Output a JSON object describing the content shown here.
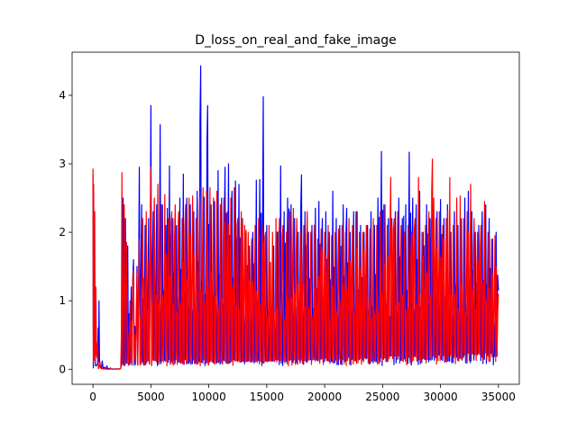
{
  "chart_data": {
    "type": "line",
    "title": "D_loss_on_real_and_fake_image",
    "xlabel": "",
    "ylabel": "",
    "xlim": [
      -1800,
      36800
    ],
    "ylim": [
      -0.22,
      4.63
    ],
    "xticks": [
      0,
      5000,
      10000,
      15000,
      20000,
      25000,
      30000,
      35000
    ],
    "yticks": [
      0,
      1,
      2,
      3,
      4
    ],
    "grid": false,
    "legend": "none",
    "series": [
      {
        "color": "#0000ff",
        "points": [
          [
            0,
            2.85
          ],
          [
            60,
            2.4
          ],
          [
            150,
            0.3
          ],
          [
            300,
            0.05
          ],
          [
            450,
            0.6
          ],
          [
            520,
            1.0
          ],
          [
            600,
            0.05
          ],
          [
            800,
            0.12
          ],
          [
            1000,
            0.03
          ],
          [
            1200,
            0.05
          ],
          [
            1500,
            0.02
          ],
          [
            2000,
            0.01
          ],
          [
            2400,
            0.02
          ],
          [
            2600,
            2.5
          ],
          [
            2800,
            2.2
          ],
          [
            3000,
            1.8
          ],
          [
            3300,
            1.2
          ],
          [
            3500,
            1.6
          ],
          [
            3800,
            1.5
          ],
          [
            4000,
            2.95
          ],
          [
            4200,
            2.4
          ],
          [
            4500,
            2.1
          ],
          [
            4800,
            2.2
          ],
          [
            5000,
            3.85
          ],
          [
            5200,
            2.3
          ],
          [
            5500,
            2.4
          ],
          [
            5800,
            3.57
          ],
          [
            6000,
            2.4
          ],
          [
            6300,
            2.1
          ],
          [
            6600,
            2.97
          ],
          [
            6900,
            2.2
          ],
          [
            7200,
            2.1
          ],
          [
            7500,
            2.5
          ],
          [
            7800,
            2.85
          ],
          [
            8100,
            2.5
          ],
          [
            8400,
            2.4
          ],
          [
            8700,
            2.3
          ],
          [
            9000,
            2.6
          ],
          [
            9300,
            4.43
          ],
          [
            9600,
            2.5
          ],
          [
            9900,
            3.85
          ],
          [
            10200,
            2.4
          ],
          [
            10500,
            2.45
          ],
          [
            10800,
            2.9
          ],
          [
            11100,
            2.5
          ],
          [
            11400,
            2.95
          ],
          [
            11700,
            3.0
          ],
          [
            12000,
            2.6
          ],
          [
            12300,
            2.75
          ],
          [
            12600,
            2.7
          ],
          [
            12900,
            2.2
          ],
          [
            13200,
            2.0
          ],
          [
            13500,
            1.8
          ],
          [
            13800,
            2.0
          ],
          [
            14100,
            2.76
          ],
          [
            14400,
            2.77
          ],
          [
            14700,
            3.98
          ],
          [
            15000,
            2.1
          ],
          [
            15300,
            1.5
          ],
          [
            15600,
            1.8
          ],
          [
            15900,
            2.0
          ],
          [
            16200,
            2.97
          ],
          [
            16500,
            2.3
          ],
          [
            16800,
            2.5
          ],
          [
            17100,
            2.4
          ],
          [
            17400,
            2.2
          ],
          [
            17700,
            2.0
          ],
          [
            18000,
            2.84
          ],
          [
            18300,
            2.3
          ],
          [
            18600,
            2.0
          ],
          [
            18900,
            2.1
          ],
          [
            19200,
            2.35
          ],
          [
            19500,
            2.45
          ],
          [
            19800,
            2.2
          ],
          [
            20100,
            2.3
          ],
          [
            20400,
            2.0
          ],
          [
            20700,
            2.6
          ],
          [
            21000,
            2.2
          ],
          [
            21300,
            2.1
          ],
          [
            21600,
            2.4
          ],
          [
            21900,
            2.35
          ],
          [
            22200,
            2.0
          ],
          [
            22500,
            2.3
          ],
          [
            22800,
            2.3
          ],
          [
            23100,
            2.1
          ],
          [
            23400,
            2.0
          ],
          [
            23700,
            2.1
          ],
          [
            24000,
            2.3
          ],
          [
            24300,
            2.1
          ],
          [
            24600,
            2.5
          ],
          [
            24900,
            3.18
          ],
          [
            25200,
            2.4
          ],
          [
            25500,
            2.2
          ],
          [
            25800,
            2.2
          ],
          [
            26100,
            2.3
          ],
          [
            26400,
            2.5
          ],
          [
            26700,
            2.2
          ],
          [
            27000,
            2.4
          ],
          [
            27300,
            3.17
          ],
          [
            27600,
            2.5
          ],
          [
            27900,
            2.4
          ],
          [
            28200,
            2.6
          ],
          [
            28500,
            2.0
          ],
          [
            28800,
            2.4
          ],
          [
            29100,
            2.2
          ],
          [
            29400,
            2.4
          ],
          [
            29700,
            2.3
          ],
          [
            30000,
            2.48
          ],
          [
            30300,
            2.2
          ],
          [
            30600,
            2.4
          ],
          [
            30900,
            2.0
          ],
          [
            31200,
            2.3
          ],
          [
            31500,
            2.1
          ],
          [
            31800,
            2.2
          ],
          [
            32100,
            2.5
          ],
          [
            32400,
            2.6
          ],
          [
            32700,
            2.3
          ],
          [
            33000,
            2.0
          ],
          [
            33300,
            2.1
          ],
          [
            33600,
            2.3
          ],
          [
            33900,
            2.4
          ],
          [
            34200,
            2.2
          ],
          [
            34500,
            1.9
          ],
          [
            34800,
            2.0
          ],
          [
            35000,
            1.15
          ]
        ]
      },
      {
        "color": "#ff0000",
        "points": [
          [
            0,
            2.93
          ],
          [
            60,
            2.7
          ],
          [
            150,
            2.3
          ],
          [
            250,
            1.2
          ],
          [
            400,
            0.4
          ],
          [
            600,
            0.1
          ],
          [
            800,
            0.02
          ],
          [
            1000,
            0.01
          ],
          [
            1500,
            0.01
          ],
          [
            2000,
            0.01
          ],
          [
            2400,
            0.02
          ],
          [
            2500,
            2.87
          ],
          [
            2700,
            2.4
          ],
          [
            2900,
            1.85
          ],
          [
            3200,
            1.0
          ],
          [
            3500,
            1.45
          ],
          [
            3800,
            1.4
          ],
          [
            4000,
            1.9
          ],
          [
            4300,
            2.2
          ],
          [
            4600,
            2.3
          ],
          [
            5000,
            2.95
          ],
          [
            5300,
            2.5
          ],
          [
            5600,
            2.7
          ],
          [
            5900,
            2.4
          ],
          [
            6200,
            2.55
          ],
          [
            6500,
            2.2
          ],
          [
            6800,
            2.3
          ],
          [
            7100,
            2.4
          ],
          [
            7400,
            2.3
          ],
          [
            7700,
            2.2
          ],
          [
            8000,
            2.4
          ],
          [
            8300,
            2.5
          ],
          [
            8600,
            2.53
          ],
          [
            8900,
            2.2
          ],
          [
            9200,
            2.5
          ],
          [
            9500,
            2.65
          ],
          [
            9800,
            2.6
          ],
          [
            10100,
            2.65
          ],
          [
            10400,
            2.5
          ],
          [
            10700,
            2.6
          ],
          [
            11000,
            2.4
          ],
          [
            11300,
            2.5
          ],
          [
            11600,
            2.3
          ],
          [
            11900,
            2.5
          ],
          [
            12200,
            2.65
          ],
          [
            12500,
            2.2
          ],
          [
            12800,
            2.3
          ],
          [
            13100,
            2.1
          ],
          [
            13400,
            2.0
          ],
          [
            13700,
            1.9
          ],
          [
            14000,
            2.1
          ],
          [
            14300,
            2.2
          ],
          [
            14600,
            2.1
          ],
          [
            14900,
            2.0
          ],
          [
            15200,
            2.1
          ],
          [
            15500,
            2.0
          ],
          [
            15800,
            2.2
          ],
          [
            16100,
            2.2
          ],
          [
            16400,
            2.1
          ],
          [
            16700,
            2.0
          ],
          [
            17000,
            2.3
          ],
          [
            17300,
            2.35
          ],
          [
            17600,
            2.2
          ],
          [
            17900,
            2.0
          ],
          [
            18200,
            2.1
          ],
          [
            18500,
            2.3
          ],
          [
            18800,
            2.0
          ],
          [
            19100,
            2.1
          ],
          [
            19400,
            1.9
          ],
          [
            19700,
            2.05
          ],
          [
            20000,
            2.0
          ],
          [
            20300,
            2.1
          ],
          [
            20600,
            1.95
          ],
          [
            20900,
            2.0
          ],
          [
            21200,
            2.05
          ],
          [
            21500,
            2.1
          ],
          [
            21800,
            2.0
          ],
          [
            22100,
            2.2
          ],
          [
            22400,
            2.1
          ],
          [
            22700,
            2.3
          ],
          [
            23000,
            2.0
          ],
          [
            23300,
            2.0
          ],
          [
            23600,
            2.1
          ],
          [
            23900,
            2.05
          ],
          [
            24200,
            2.2
          ],
          [
            24500,
            2.1
          ],
          [
            24800,
            2.3
          ],
          [
            25100,
            2.4
          ],
          [
            25400,
            2.1
          ],
          [
            25700,
            2.8
          ],
          [
            26000,
            2.2
          ],
          [
            26300,
            2.3
          ],
          [
            26600,
            2.1
          ],
          [
            26900,
            2.0
          ],
          [
            27200,
            2.1
          ],
          [
            27500,
            2.0
          ],
          [
            27800,
            2.2
          ],
          [
            28100,
            2.8
          ],
          [
            28400,
            2.0
          ],
          [
            28700,
            2.1
          ],
          [
            29000,
            2.3
          ],
          [
            29300,
            3.07
          ],
          [
            29600,
            2.2
          ],
          [
            29900,
            2.3
          ],
          [
            30200,
            2.1
          ],
          [
            30500,
            2.2
          ],
          [
            30800,
            2.8
          ],
          [
            31100,
            2.1
          ],
          [
            31400,
            2.5
          ],
          [
            31700,
            2.53
          ],
          [
            32000,
            2.2
          ],
          [
            32300,
            2.3
          ],
          [
            32600,
            2.7
          ],
          [
            32900,
            2.2
          ],
          [
            33200,
            2.0
          ],
          [
            33500,
            2.1
          ],
          [
            33800,
            2.45
          ],
          [
            34100,
            2.0
          ],
          [
            34400,
            1.9
          ],
          [
            34700,
            1.95
          ],
          [
            35000,
            1.1
          ]
        ]
      }
    ]
  }
}
